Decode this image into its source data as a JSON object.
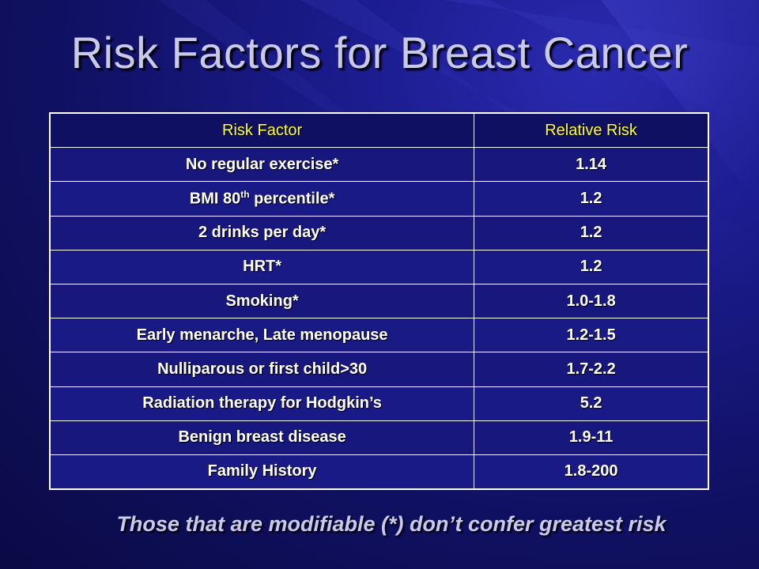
{
  "slide": {
    "title": "Risk Factors for Breast Cancer",
    "footer": "Those that are modifiable (*) don’t confer greatest risk"
  },
  "table": {
    "headers": {
      "factor": "Risk Factor",
      "risk": "Relative Risk"
    },
    "rows": [
      {
        "factor": "No regular exercise*",
        "risk": "1.14"
      },
      {
        "factor_pre": "BMI 80",
        "factor_sup": "th",
        "factor_post": " percentile*",
        "risk": "1.2"
      },
      {
        "factor": "2 drinks per day*",
        "risk": "1.2"
      },
      {
        "factor": "HRT*",
        "risk": "1.2"
      },
      {
        "factor": "Smoking*",
        "risk": "1.0-1.8"
      },
      {
        "factor": "Early menarche, Late menopause",
        "risk": "1.2-1.5"
      },
      {
        "factor": "Nulliparous or first child>30",
        "risk": "1.7-2.2"
      },
      {
        "factor": "Radiation therapy for Hodgkin’s",
        "risk": "5.2"
      },
      {
        "factor": "Benign breast disease",
        "risk": "1.9-11"
      },
      {
        "factor": "Family History",
        "risk": "1.8-200"
      }
    ]
  },
  "colors": {
    "background": "#111166",
    "title": "#c9c9ee",
    "header_text": "#ffff33",
    "cell_text": "#ffffff"
  }
}
